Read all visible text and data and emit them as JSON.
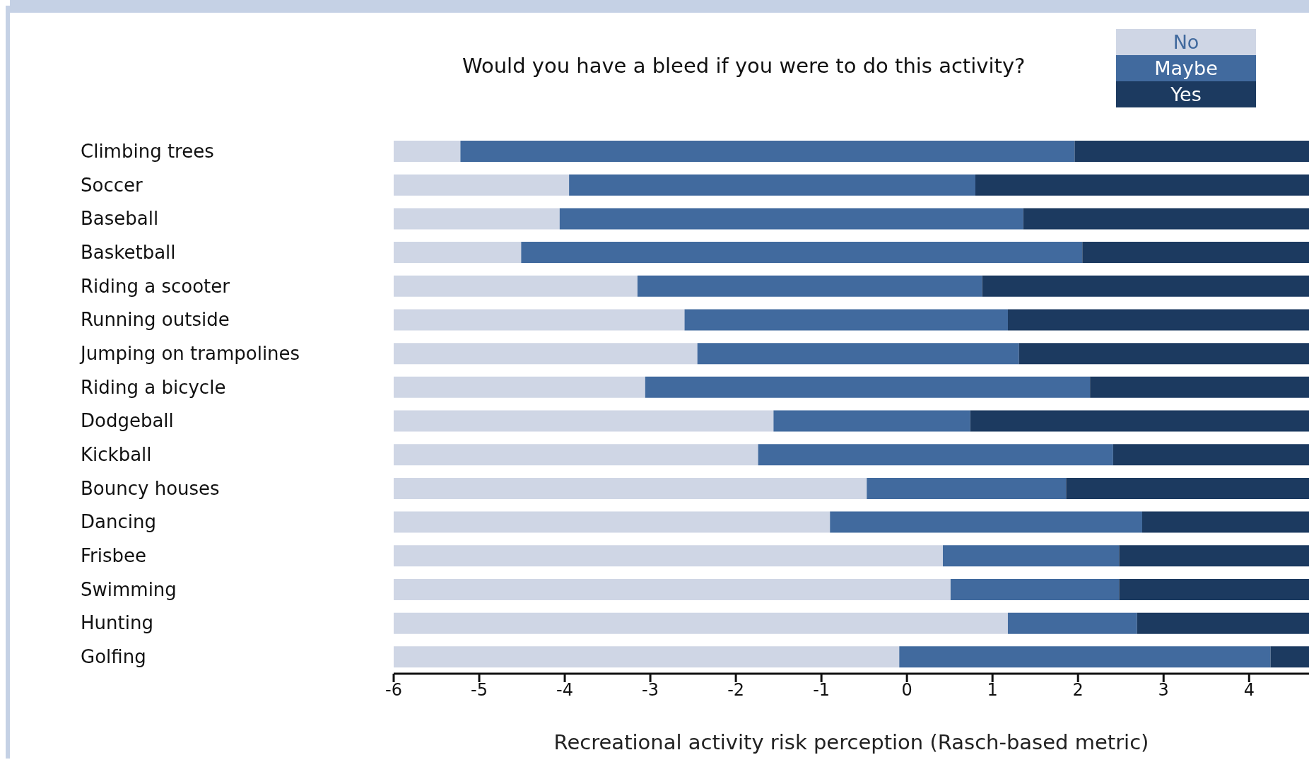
{
  "chart_data": {
    "type": "bar",
    "orientation": "horizontal",
    "title": "Would you have a bleed if you were to do this activity?",
    "xlabel": "Recreational activity risk perception (Rasch-based metric)",
    "categories": [
      "Climbing trees",
      "Soccer",
      "Baseball",
      "Basketball",
      "Riding a scooter",
      "Running outside",
      "Jumping on trampolines",
      "Riding a bicycle",
      "Dodgeball",
      "Kickball",
      "Bouncy houses",
      "Dancing",
      "Frisbee",
      "Swimming",
      "Hunting",
      "Golfing"
    ],
    "series": [
      {
        "name": "No",
        "color": "#cfd6e5",
        "base": [
          -6,
          -6,
          -6,
          -6,
          -6,
          -6,
          -6,
          -6,
          -6,
          -6,
          -6,
          -6,
          -6,
          -6,
          -6,
          -6
        ],
        "values": [
          0.78,
          2.05,
          1.94,
          1.49,
          2.85,
          3.4,
          3.55,
          2.94,
          4.44,
          4.26,
          5.53,
          5.1,
          6.42,
          6.51,
          7.18,
          5.91
        ]
      },
      {
        "name": "Maybe",
        "color": "#416a9e",
        "base": [
          -5.22,
          -3.95,
          -4.06,
          -4.51,
          -3.15,
          -2.6,
          -2.45,
          -3.06,
          -1.56,
          -1.74,
          -0.47,
          -0.9,
          0.42,
          0.51,
          1.18,
          -0.09
        ],
        "values": [
          7.18,
          4.75,
          5.42,
          6.56,
          4.03,
          3.78,
          3.76,
          5.2,
          2.3,
          4.15,
          2.33,
          3.65,
          2.06,
          1.97,
          1.51,
          4.34
        ]
      },
      {
        "name": "Yes",
        "color": "#1c3a60",
        "base": [
          1.96,
          0.8,
          1.36,
          2.05,
          0.88,
          1.18,
          1.31,
          2.14,
          0.74,
          2.41,
          1.86,
          2.75,
          2.48,
          2.48,
          2.69,
          4.25
        ],
        "values": [
          2.74,
          3.9,
          3.34,
          2.65,
          3.82,
          3.52,
          3.39,
          2.56,
          3.96,
          2.29,
          2.84,
          1.95,
          2.22,
          2.22,
          2.01,
          0.45
        ]
      }
    ],
    "xlim": [
      -6,
      4.7
    ],
    "xticks": [
      -6,
      -5,
      -4,
      -3,
      -2,
      -1,
      0,
      1,
      2,
      3,
      4
    ],
    "legend": "top right"
  }
}
